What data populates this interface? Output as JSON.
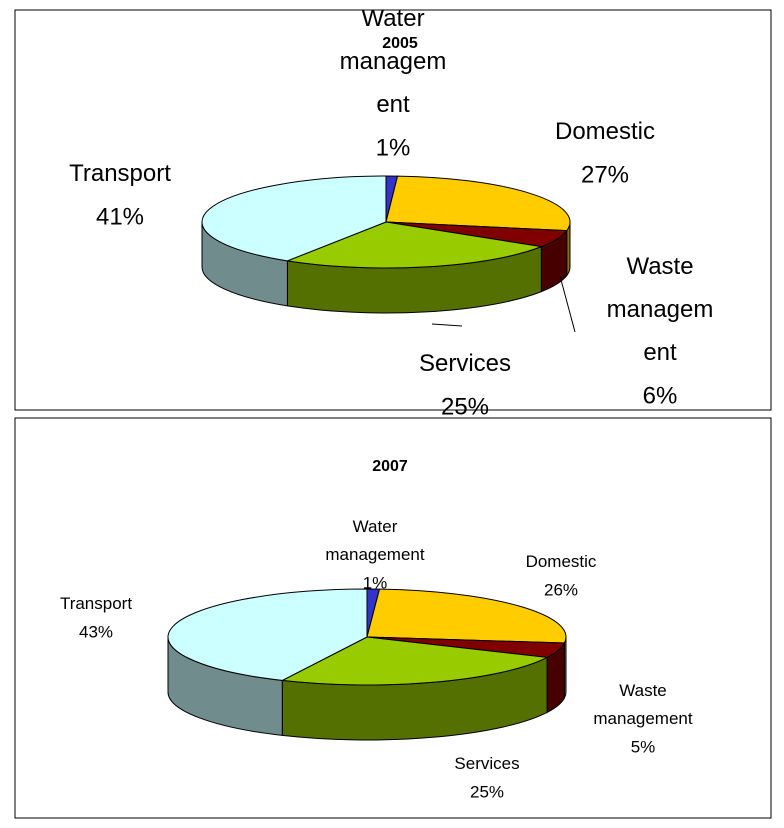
{
  "chart_data": [
    {
      "type": "pie3d",
      "title": "2005",
      "categories": [
        "Water management",
        "Domestic",
        "Waste management",
        "Services",
        "Transport"
      ],
      "values": [
        1,
        27,
        6,
        25,
        41
      ],
      "value_labels": [
        "1%",
        "27%",
        "6%",
        "25%",
        "41%"
      ],
      "colors": [
        "#3333cc",
        "#ffcc00",
        "#800000",
        "#99cc00",
        "#ccffff"
      ]
    },
    {
      "type": "pie3d",
      "title": "2007",
      "categories": [
        "Water management",
        "Domestic",
        "Waste management",
        "Services",
        "Transport"
      ],
      "values": [
        1,
        26,
        5,
        25,
        43
      ],
      "value_labels": [
        "1%",
        "26%",
        "5%",
        "25%",
        "43%"
      ],
      "colors": [
        "#3333cc",
        "#ffcc00",
        "#800000",
        "#99cc00",
        "#ccffff"
      ]
    }
  ]
}
